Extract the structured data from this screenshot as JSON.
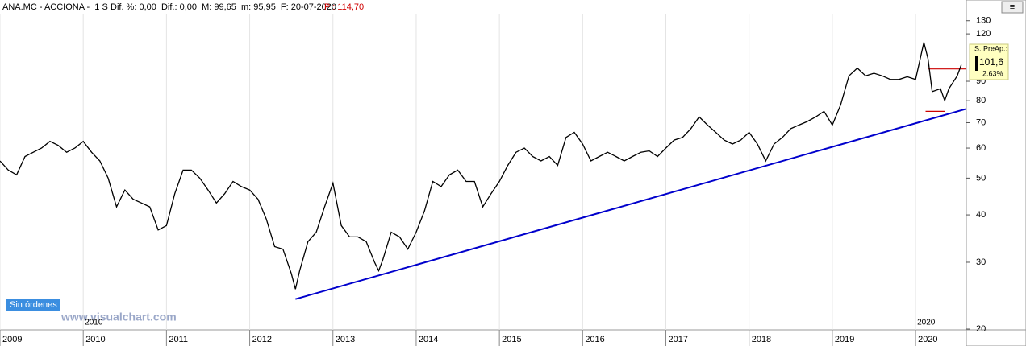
{
  "header": {
    "symbol": "ANA.MC - ACCIONA -  1 S",
    "stats": "Dif. %: 0,00  Dif.: 0,00  M: 99,65  m: 95,95  F: 20-07-2020",
    "price": "P : 114,70"
  },
  "price_box": {
    "label": "S. PreAp.:",
    "value": "101,6",
    "change": "2.63%"
  },
  "button": "Sin órdenes",
  "watermark": "www.visualchart.com",
  "chart_data": {
    "type": "line",
    "log_scale": true,
    "grid": true,
    "xlim": [
      2009,
      2020.6
    ],
    "xticks": [
      2009,
      2010,
      2011,
      2012,
      2013,
      2014,
      2015,
      2016,
      2017,
      2018,
      2019,
      2020
    ],
    "ylim": [
      20,
      135
    ],
    "yticks": [
      20,
      30,
      40,
      50,
      60,
      70,
      80,
      90,
      120,
      130
    ],
    "markers": [
      {
        "x": 2010,
        "label": "2010"
      },
      {
        "x": 2020,
        "label": "2020"
      }
    ],
    "series": [
      {
        "name": "ANA.MC",
        "color": "#000000",
        "x": [
          2009.0,
          2009.1,
          2009.2,
          2009.3,
          2009.4,
          2009.5,
          2009.6,
          2009.7,
          2009.8,
          2009.9,
          2010.0,
          2010.1,
          2010.2,
          2010.3,
          2010.4,
          2010.5,
          2010.6,
          2010.7,
          2010.8,
          2010.9,
          2011.0,
          2011.1,
          2011.2,
          2011.3,
          2011.4,
          2011.5,
          2011.6,
          2011.7,
          2011.8,
          2011.9,
          2012.0,
          2012.1,
          2012.2,
          2012.3,
          2012.4,
          2012.5,
          2012.55,
          2012.6,
          2012.7,
          2012.8,
          2012.9,
          2013.0,
          2013.1,
          2013.2,
          2013.3,
          2013.4,
          2013.5,
          2013.55,
          2013.6,
          2013.7,
          2013.8,
          2013.9,
          2014.0,
          2014.1,
          2014.2,
          2014.3,
          2014.4,
          2014.5,
          2014.6,
          2014.7,
          2014.8,
          2014.9,
          2015.0,
          2015.1,
          2015.2,
          2015.3,
          2015.4,
          2015.5,
          2015.6,
          2015.7,
          2015.8,
          2015.9,
          2016.0,
          2016.1,
          2016.2,
          2016.3,
          2016.4,
          2016.5,
          2016.6,
          2016.7,
          2016.8,
          2016.9,
          2017.0,
          2017.1,
          2017.2,
          2017.3,
          2017.4,
          2017.5,
          2017.6,
          2017.7,
          2017.8,
          2017.9,
          2018.0,
          2018.1,
          2018.2,
          2018.3,
          2018.4,
          2018.5,
          2018.6,
          2018.7,
          2018.8,
          2018.9,
          2019.0,
          2019.1,
          2019.2,
          2019.3,
          2019.4,
          2019.5,
          2019.6,
          2019.7,
          2019.8,
          2019.9,
          2020.0,
          2020.1,
          2020.15,
          2020.2,
          2020.3,
          2020.35,
          2020.4,
          2020.5,
          2020.55
        ],
        "values": [
          55.5,
          52.5,
          51,
          57,
          58.5,
          60,
          62.5,
          61,
          58.5,
          60,
          62.5,
          58.5,
          55.5,
          50,
          42,
          46.5,
          44,
          43,
          42,
          36.5,
          37.5,
          45.5,
          52.5,
          52.5,
          50,
          46.5,
          43,
          45.5,
          49,
          47.5,
          46.5,
          44,
          39,
          33,
          32.5,
          28,
          25.5,
          28.5,
          34,
          36,
          42,
          48.5,
          37.5,
          35,
          35,
          34,
          30,
          28.5,
          30.5,
          36,
          35,
          32.5,
          36,
          41,
          49,
          47.5,
          51,
          52.5,
          49,
          49,
          42,
          45.5,
          49,
          54,
          58.5,
          60,
          57,
          55.5,
          57,
          54,
          64,
          66,
          61.5,
          55.5,
          57,
          58.5,
          57,
          55.5,
          57,
          58.5,
          59,
          57,
          60,
          63,
          64,
          67.5,
          72.5,
          69,
          66,
          63,
          61.5,
          63,
          66,
          61.5,
          55.5,
          61.5,
          64,
          67.5,
          69,
          70.5,
          72.5,
          75,
          69,
          78,
          93,
          97.5,
          93,
          94.5,
          93,
          91,
          91,
          92.5,
          91,
          114,
          103,
          84.5,
          86,
          80,
          86,
          93,
          99.5
        ]
      }
    ],
    "trendline": {
      "x": [
        2012.55,
        2020.6
      ],
      "values": [
        24,
        76
      ],
      "color": "#0000cc"
    },
    "levels": [
      {
        "x": [
          2020.15,
          2020.6
        ],
        "values": [
          97,
          97
        ],
        "color": "#cc0000"
      },
      {
        "x": [
          2020.12,
          2020.35
        ],
        "values": [
          75,
          75
        ],
        "color": "#cc0000"
      }
    ]
  }
}
